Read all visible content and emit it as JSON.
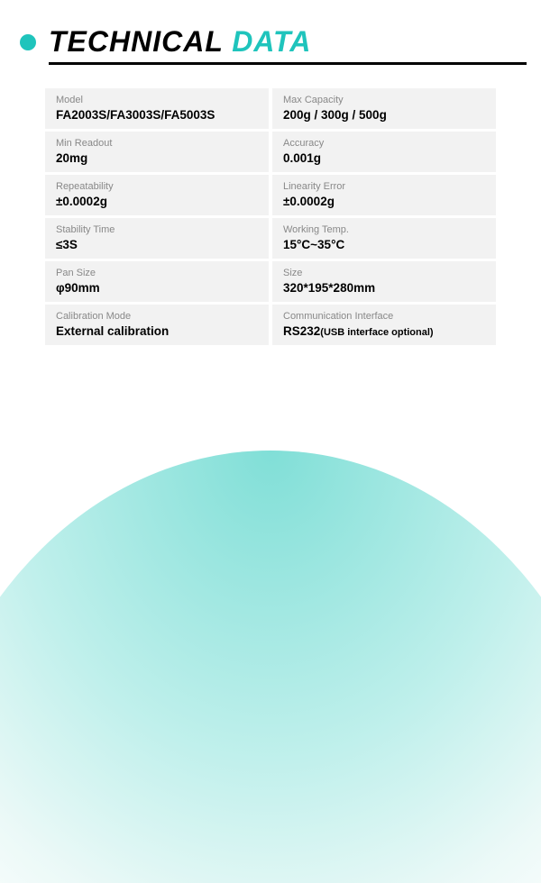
{
  "header": {
    "title_part1": "TECHNICAL ",
    "title_part2": "DATA",
    "bullet_color": "#1fc4bc",
    "accent_color": "#1fc4bc",
    "text_color": "#000000"
  },
  "specs": [
    {
      "left": {
        "label": "Model",
        "value": "FA2003S/FA3003S/FA5003S"
      },
      "right": {
        "label": "Max Capacity",
        "value": "200g / 300g / 500g"
      }
    },
    {
      "left": {
        "label": "Min Readout",
        "value": "20mg"
      },
      "right": {
        "label": "Accuracy",
        "value": "0.001g"
      }
    },
    {
      "left": {
        "label": "Repeatability",
        "value": "±0.0002g"
      },
      "right": {
        "label": "Linearity Error",
        "value": "±0.0002g"
      }
    },
    {
      "left": {
        "label": "Stability Time",
        "value": "≤3S"
      },
      "right": {
        "label": "Working Temp.",
        "value": "15°C~35°C"
      }
    },
    {
      "left": {
        "label": "Pan Size",
        "value": "φ90mm"
      },
      "right": {
        "label": "Size",
        "value": "320*195*280mm"
      }
    },
    {
      "left": {
        "label": "Calibration Mode",
        "value": "External calibration"
      },
      "right": {
        "label": "Communication Interface",
        "value": "RS232",
        "sub": "(USB interface optional)"
      }
    }
  ],
  "styling": {
    "cell_bg": "#f2f2f2",
    "label_color": "#888888",
    "value_color": "#000000",
    "curve_gradient_inner": "#6ad9d0",
    "curve_gradient_outer": "#ffffff"
  }
}
